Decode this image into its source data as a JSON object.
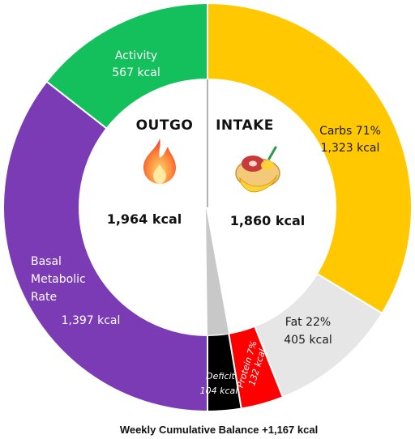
{
  "chart_data": {
    "type": "pie",
    "title": "",
    "halves": [
      {
        "heading": "OUTGO",
        "total": "1,964 kcal",
        "slices": [
          {
            "key": "activity",
            "label": "Activity",
            "value_text": "567 kcal",
            "value": 567,
            "color": "#13c05b"
          },
          {
            "key": "bmr",
            "label": "Basal Metabolic Rate",
            "label_lines": [
              "Basal",
              "Metabolic",
              "Rate"
            ],
            "value_text": "1,397 kcal",
            "value": 1397,
            "color": "#7a3bb5"
          }
        ]
      },
      {
        "heading": "INTAKE",
        "total": "1,860 kcal",
        "slices": [
          {
            "key": "carbs",
            "label": "Carbs 71%",
            "value_text": "1,323 kcal",
            "value": 1323,
            "color": "#ffc800"
          },
          {
            "key": "fat",
            "label": "Fat 22%",
            "value_text": "405 kcal",
            "value": 405,
            "color": "#e6e6e6"
          },
          {
            "key": "protein",
            "label": "Protein 7%",
            "value_text": "132 kcal",
            "value": 132,
            "color": "#ff0000"
          },
          {
            "key": "deficit",
            "label": "Deficit",
            "value_text": "104 kcal",
            "value": 104,
            "color": "#000000"
          }
        ]
      }
    ],
    "footer": "Weekly Cumulative Balance +1,167 kcal"
  },
  "icons": {
    "outgo": "fire-icon",
    "intake": "food-plate-icon"
  },
  "colors": {
    "divider": "#999999",
    "inner_wedge": "#c8c8c8"
  }
}
